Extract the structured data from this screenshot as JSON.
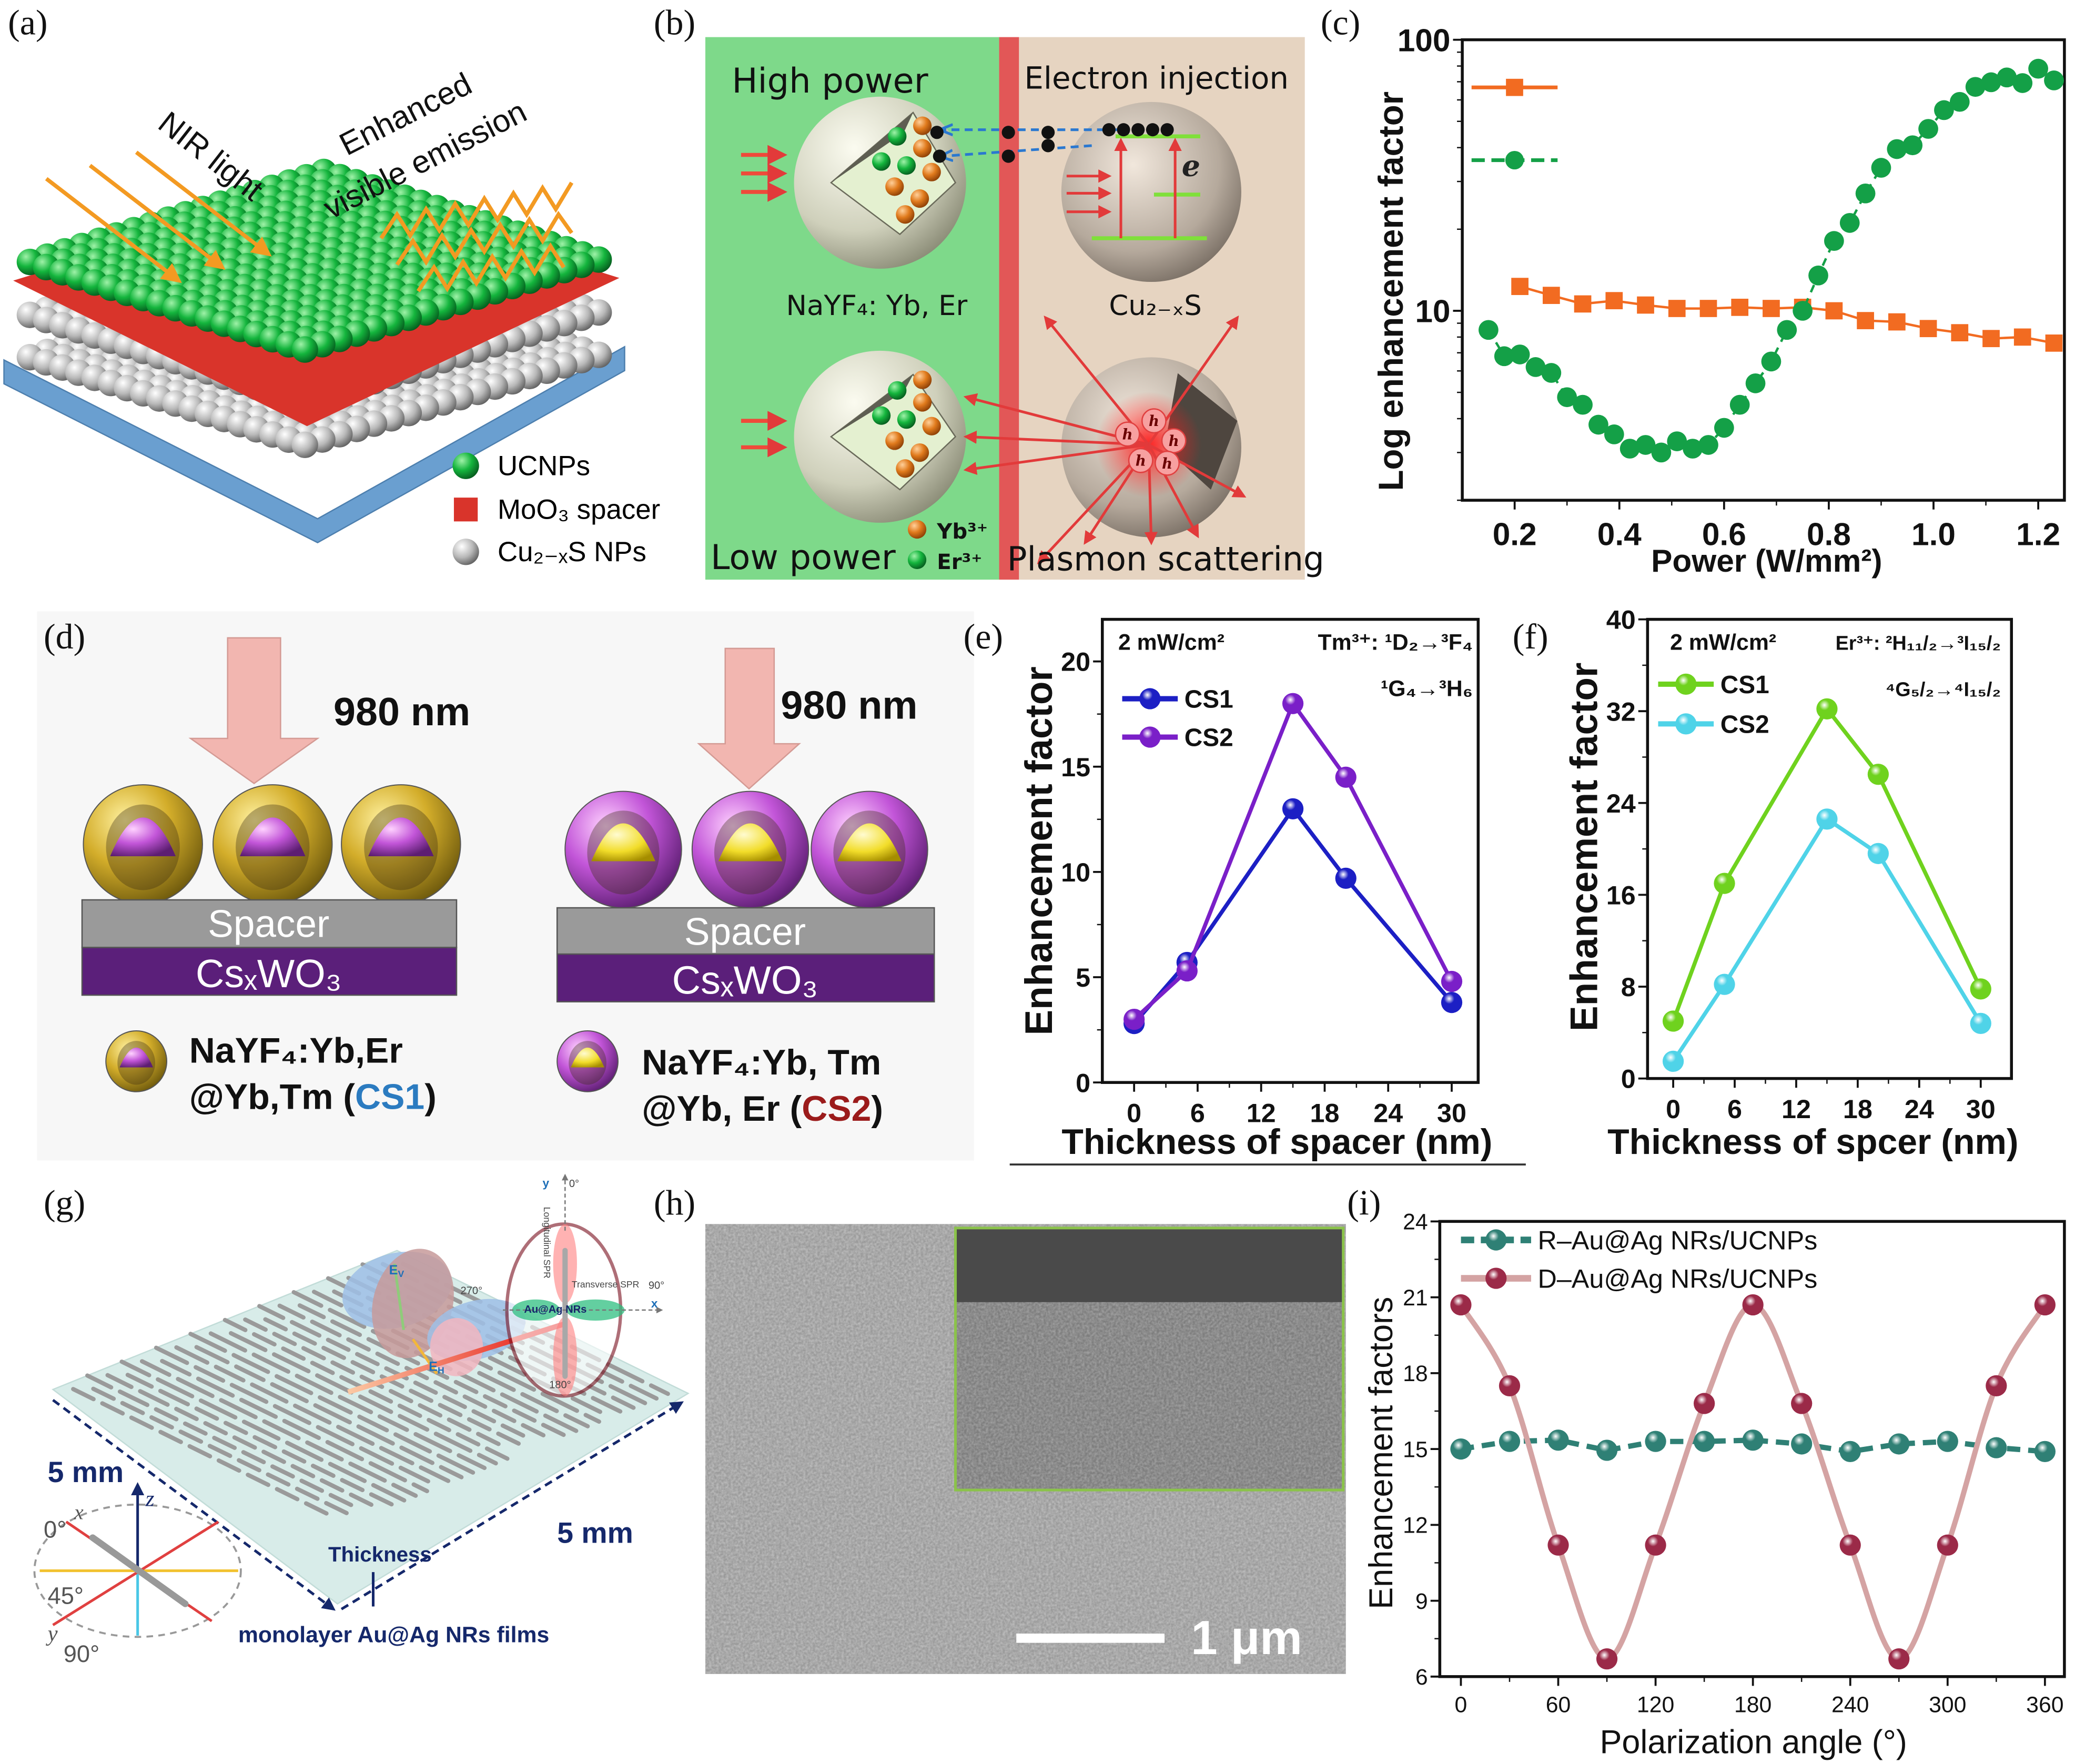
{
  "panel_labels": {
    "a": "(a)",
    "b": "(b)",
    "c": "(c)",
    "d": "(d)",
    "e": "(e)",
    "f": "(f)",
    "g": "(g)",
    "h": "(h)",
    "i": "(i)"
  },
  "panel_a": {
    "nir_light": "NIR light",
    "emission_line1": "Enhanced",
    "emission_line2": "visible emission",
    "legend": [
      "UCNPs",
      "MoO₃ spacer",
      "Cu₂₋ₓS NPs"
    ],
    "colors": {
      "ucnp": "#12a33a",
      "spacer": "#d9342b",
      "cus": "#b9b9b9",
      "base": "#6a9fd0",
      "nir_arrow": "#f39a22"
    }
  },
  "panel_b": {
    "high_power": "High power",
    "electron_injection": "Electron injection",
    "ucnp_label": "NaYF₄: Yb, Er",
    "cus_label": "Cu₂₋ₓS",
    "low_power": "Low power",
    "plasmon_scattering": "Plasmon scattering",
    "yb": "Yb³⁺",
    "er": "Er³⁺",
    "electron": "e",
    "hole": "h"
  },
  "panel_d": {
    "wavelength_left": "980 nm",
    "wavelength_right": "980 nm",
    "spacer": "Spacer",
    "substrate": "CsₓWO₃",
    "cs1_line1": "NaYF₄:Yb,Er",
    "cs1_line2_pre": "@Yb,Tm (",
    "cs1_tag": "CS1",
    "cs2_line1": "NaYF₄:Yb, Tm",
    "cs2_line2_pre": "@Yb, Er (",
    "cs2_tag": "CS2",
    "close_paren": ")",
    "colors": {
      "cs1": "#2b7bc0",
      "cs2": "#9b1b1b",
      "substrate": "#5b1f7a",
      "spacer": "#9a9a9a"
    }
  },
  "panel_g": {
    "y_axis": "y",
    "x_axis": "x",
    "z_axis": "z",
    "deg0": "0°",
    "deg90": "90°",
    "deg180": "180°",
    "deg270": "270°",
    "deg45": "45°",
    "longitudinal": "Longitudinal SPR",
    "transverse": "Transverse SPR",
    "nrs": "Au@Ag NRs",
    "field_symbol": "E",
    "v_sub": "V",
    "h_sub": "H",
    "size_left": "5 mm",
    "size_right": "5 mm",
    "thickness": "Thickness",
    "film": "monolayer Au@Ag NRs films"
  },
  "panel_h": {
    "scale_bar": "1 μm"
  },
  "chart_data": [
    {
      "panel": "c",
      "type": "scatter",
      "xlabel": "Power (W/mm²)",
      "ylabel": "Log enhancement factor",
      "xlim": [
        0.1,
        1.25
      ],
      "ylim": [
        2,
        100
      ],
      "yscale": "log",
      "xticks": [
        "0.2",
        "0.4",
        "0.6",
        "0.8",
        "1.0",
        "1.2"
      ],
      "yticks": [
        "10",
        "100"
      ],
      "grid": false,
      "legend": "top-left",
      "series": [
        {
          "color": "#f26b21",
          "marker": "square",
          "line": "solid",
          "x": [
            0.21,
            0.27,
            0.33,
            0.39,
            0.45,
            0.51,
            0.57,
            0.63,
            0.69,
            0.75,
            0.81,
            0.87,
            0.93,
            0.99,
            1.05,
            1.11,
            1.17,
            1.23
          ],
          "y": [
            12.3,
            11.4,
            10.6,
            10.9,
            10.5,
            10.2,
            10.2,
            10.3,
            10.2,
            10.3,
            10.0,
            9.2,
            9.1,
            8.6,
            8.3,
            7.9,
            8.0,
            7.6
          ]
        },
        {
          "color": "#14a047",
          "marker": "circle",
          "line": "dashed",
          "x": [
            0.15,
            0.18,
            0.21,
            0.24,
            0.27,
            0.3,
            0.33,
            0.36,
            0.39,
            0.42,
            0.45,
            0.48,
            0.51,
            0.54,
            0.57,
            0.6,
            0.63,
            0.66,
            0.69,
            0.72,
            0.75,
            0.78,
            0.81,
            0.84,
            0.87,
            0.9,
            0.93,
            0.96,
            0.99,
            1.02,
            1.05,
            1.08,
            1.11,
            1.14,
            1.17,
            1.2,
            1.23
          ],
          "y": [
            8.5,
            6.8,
            6.9,
            6.2,
            5.9,
            4.8,
            4.5,
            3.8,
            3.5,
            3.1,
            3.2,
            3.0,
            3.3,
            3.1,
            3.2,
            3.7,
            4.5,
            5.4,
            6.5,
            8.5,
            10.0,
            13.5,
            18.1,
            21.1,
            27.1,
            33.7,
            39.5,
            40.8,
            46.9,
            55.0,
            59.0,
            67.0,
            69.7,
            72.6,
            69.2,
            78.2,
            70.8
          ]
        }
      ]
    },
    {
      "panel": "e",
      "type": "line",
      "xlabel": "Thickness of spacer (nm)",
      "ylabel": "Enhancement factor",
      "xlim": [
        -3,
        32.5
      ],
      "ylim": [
        0,
        22
      ],
      "xticks": [
        0,
        6,
        12,
        18,
        24,
        30
      ],
      "yticks": [
        0,
        5,
        10,
        15,
        20
      ],
      "grid": false,
      "legend": "top-left",
      "annotations": [
        "2 mW/cm²",
        "Tm³⁺: ¹D₂→³F₄",
        "¹G₄→³H₆"
      ],
      "x": [
        0,
        5,
        15,
        20,
        30
      ],
      "series": [
        {
          "name": "CS1",
          "color": "#1c1fc4",
          "y": [
            2.8,
            5.7,
            13.0,
            9.7,
            3.8
          ]
        },
        {
          "name": "CS2",
          "color": "#7a1fc8",
          "y": [
            3.0,
            5.3,
            18.0,
            14.5,
            4.8
          ]
        }
      ]
    },
    {
      "panel": "f",
      "type": "line",
      "xlabel": "Thickness of spcer (nm)",
      "ylabel": "Enhancement factor",
      "xlim": [
        -2.5,
        33
      ],
      "ylim": [
        0,
        40
      ],
      "xticks": [
        0,
        6,
        12,
        18,
        24,
        30
      ],
      "yticks": [
        0,
        8,
        16,
        24,
        32,
        40
      ],
      "grid": false,
      "legend": "top-left",
      "annotations": [
        "2 mW/cm²",
        "Er³⁺: ²H₁₁/₂→³I₁₅/₂",
        "⁴G₅/₂→⁴I₁₅/₂"
      ],
      "x": [
        0,
        5,
        15,
        20,
        30
      ],
      "series": [
        {
          "name": "CS1",
          "color": "#6fd21e",
          "y": [
            5.0,
            17.0,
            32.2,
            26.5,
            7.8
          ]
        },
        {
          "name": "CS2",
          "color": "#4fd3e8",
          "y": [
            1.5,
            8.2,
            22.6,
            19.6,
            4.8
          ]
        }
      ]
    },
    {
      "panel": "i",
      "type": "line",
      "xlabel": "Polarization angle (°)",
      "ylabel": "Enhancement factors",
      "xlim": [
        -13,
        372
      ],
      "ylim": [
        6,
        24
      ],
      "xticks": [
        0,
        60,
        120,
        180,
        240,
        300,
        360
      ],
      "yticks": [
        6,
        9,
        12,
        15,
        18,
        21,
        24
      ],
      "grid": false,
      "legend": "top-left",
      "x": [
        0,
        30,
        60,
        90,
        120,
        150,
        180,
        210,
        240,
        270,
        300,
        330,
        360
      ],
      "series": [
        {
          "name": "R–Au@Ag NRs/UCNPs",
          "color": "#2f8075",
          "line": "dashed",
          "y": [
            15.0,
            15.3,
            15.35,
            14.95,
            15.3,
            15.3,
            15.35,
            15.2,
            14.9,
            15.2,
            15.3,
            15.05,
            14.9
          ]
        },
        {
          "name": "D–Au@Ag NRs/UCNPs",
          "color": "#9b2a48",
          "line_color": "#d4a3a3",
          "line": "smooth",
          "y": [
            20.7,
            17.5,
            11.2,
            6.7,
            11.2,
            16.8,
            20.7,
            16.8,
            11.2,
            6.7,
            11.2,
            17.5,
            20.7
          ]
        }
      ]
    }
  ]
}
